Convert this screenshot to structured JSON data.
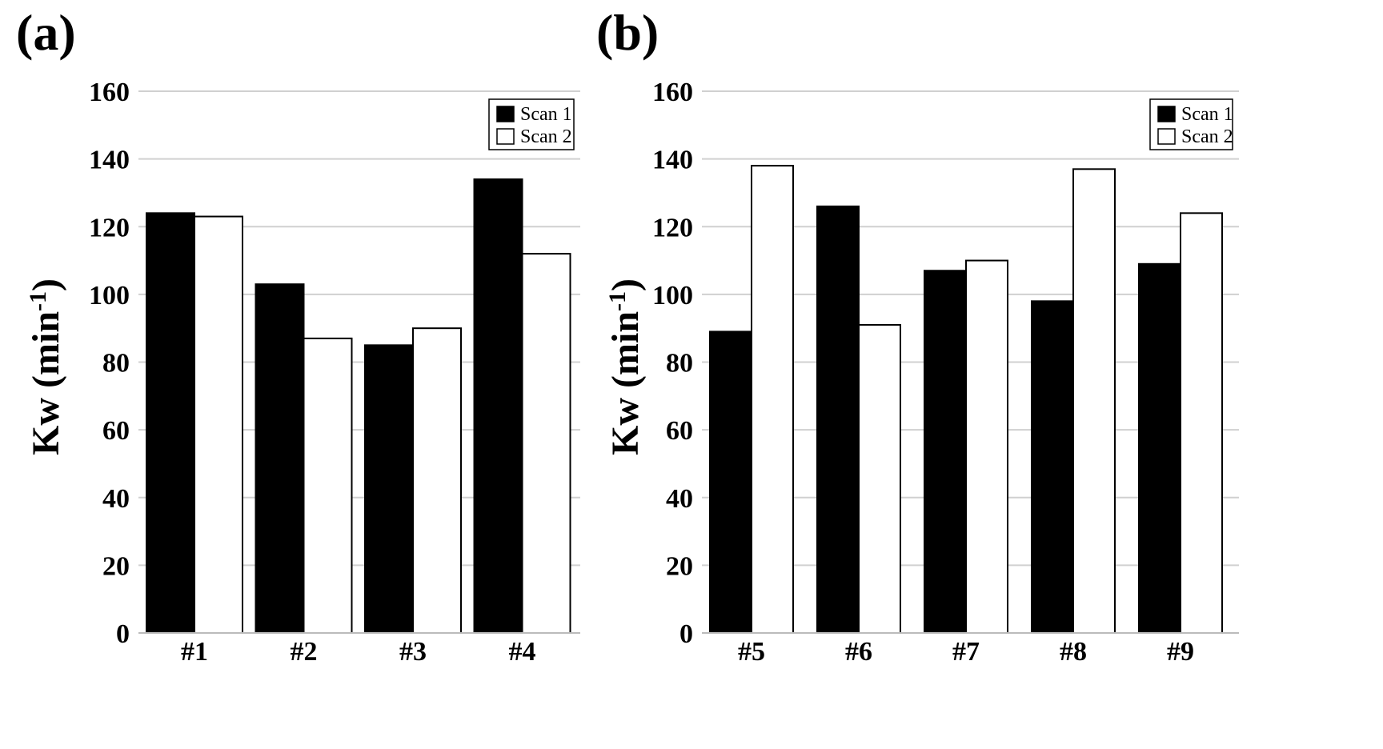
{
  "panel_labels": [
    "(a)",
    "(b)"
  ],
  "colors": {
    "scan1": "#000000",
    "scan2": "#ffffff",
    "grid": "#d0d0d0",
    "axis": "#bbbbbb"
  },
  "chart_data": [
    {
      "type": "bar",
      "panel_label": "(a)",
      "categories": [
        "#1",
        "#2",
        "#3",
        "#4"
      ],
      "series": [
        {
          "name": "Scan 1",
          "values": [
            124,
            103,
            85,
            134
          ]
        },
        {
          "name": "Scan 2",
          "values": [
            123,
            87,
            90,
            112
          ]
        }
      ],
      "ylabel": "Kw (min-1)",
      "ylabel_base": "Kw (min",
      "ylabel_sup": "-1",
      "ylabel_close": ")",
      "ylim": [
        0,
        160
      ],
      "yticks": [
        "0",
        "20",
        "40",
        "60",
        "80",
        "100",
        "120",
        "140",
        "160"
      ],
      "grid": true,
      "legend_position": "top-right"
    },
    {
      "type": "bar",
      "panel_label": "(b)",
      "categories": [
        "#5",
        "#6",
        "#7",
        "#8",
        "#9"
      ],
      "series": [
        {
          "name": "Scan 1",
          "values": [
            89,
            126,
            107,
            98,
            109
          ]
        },
        {
          "name": "Scan 2",
          "values": [
            138,
            91,
            110,
            137,
            124
          ]
        }
      ],
      "ylabel": "Kw (min-1)",
      "ylabel_base": "Kw (min",
      "ylabel_sup": "-1",
      "ylabel_close": ")",
      "ylim": [
        0,
        160
      ],
      "yticks": [
        "0",
        "20",
        "40",
        "60",
        "80",
        "100",
        "120",
        "140",
        "160"
      ],
      "grid": true,
      "legend_position": "top-right"
    }
  ]
}
